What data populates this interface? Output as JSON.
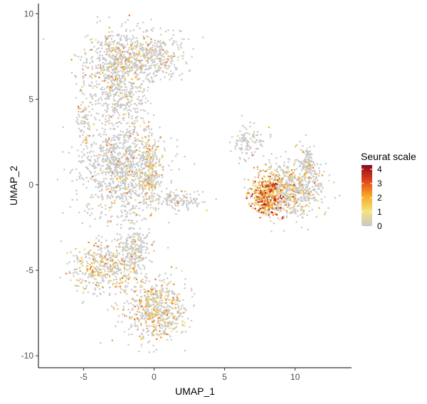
{
  "chart_data": {
    "type": "scatter",
    "subtype": "umap-feature-plot",
    "xlabel": "UMAP_1",
    "ylabel": "UMAP_2",
    "xlim": [
      -8.2,
      14
    ],
    "ylim": [
      -10.7,
      10.6
    ],
    "x_ticks": [
      -5,
      0,
      5,
      10
    ],
    "y_ticks": [
      -10,
      -5,
      0,
      5,
      10
    ],
    "grid": false,
    "legend": {
      "title": "Seurat scale",
      "position": "right",
      "ticks": [
        0,
        1,
        2,
        3,
        4
      ],
      "range": [
        0,
        4.3
      ]
    },
    "color_scale": [
      "#c8c8c8",
      "#f4e37b",
      "#f5a623",
      "#e0421a",
      "#8b0a1e"
    ],
    "point_color_default": "#c8c8c8",
    "clusters": [
      {
        "name": "top lobe",
        "cx": -2.3,
        "cy": 7.2,
        "rx": 2.4,
        "ry": 1.7,
        "n": 700,
        "expr": 0.14
      },
      {
        "name": "top lobe right",
        "cx": 0.4,
        "cy": 7.6,
        "rx": 1.8,
        "ry": 1.3,
        "n": 260,
        "expr": 0.12
      },
      {
        "name": "top neck",
        "cx": -2.4,
        "cy": 5.0,
        "rx": 1.8,
        "ry": 1.1,
        "n": 230,
        "expr": 0.1
      },
      {
        "name": "arc strand",
        "cx": -5.0,
        "cy": 4.0,
        "rx": 0.5,
        "ry": 1.8,
        "n": 80,
        "expr": 0.15
      },
      {
        "name": "middle body",
        "cx": -2.3,
        "cy": 0.9,
        "rx": 2.5,
        "ry": 2.7,
        "n": 1100,
        "expr": 0.1
      },
      {
        "name": "middle right band",
        "cx": -0.3,
        "cy": 0.8,
        "rx": 0.7,
        "ry": 1.7,
        "n": 220,
        "expr": 0.35
      },
      {
        "name": "middle arm",
        "cx": 1.8,
        "cy": -0.9,
        "rx": 1.8,
        "ry": 0.45,
        "n": 140,
        "expr": 0.05
      },
      {
        "name": "lower left",
        "cx": -3.6,
        "cy": -4.8,
        "rx": 1.9,
        "ry": 1.4,
        "n": 420,
        "expr": 0.28
      },
      {
        "name": "lower middle",
        "cx": -1.3,
        "cy": -4.0,
        "rx": 1.0,
        "ry": 1.4,
        "n": 230,
        "expr": 0.08
      },
      {
        "name": "bottom",
        "cx": 0.1,
        "cy": -7.3,
        "rx": 2.0,
        "ry": 1.6,
        "n": 650,
        "expr": 0.34
      },
      {
        "name": "right cluster",
        "cx": 9.8,
        "cy": -0.2,
        "rx": 2.0,
        "ry": 1.5,
        "n": 700,
        "expr": 0.22
      },
      {
        "name": "right cluster hot spot",
        "cx": 8.0,
        "cy": -0.7,
        "rx": 1.0,
        "ry": 1.0,
        "n": 420,
        "expr": 0.9
      },
      {
        "name": "right cluster upper arm",
        "cx": 10.9,
        "cy": 1.3,
        "rx": 0.4,
        "ry": 0.9,
        "n": 100,
        "expr": 0.05
      },
      {
        "name": "right strand",
        "cx": 6.7,
        "cy": 2.5,
        "rx": 1.0,
        "ry": 0.9,
        "n": 110,
        "expr": 0.03
      }
    ]
  }
}
